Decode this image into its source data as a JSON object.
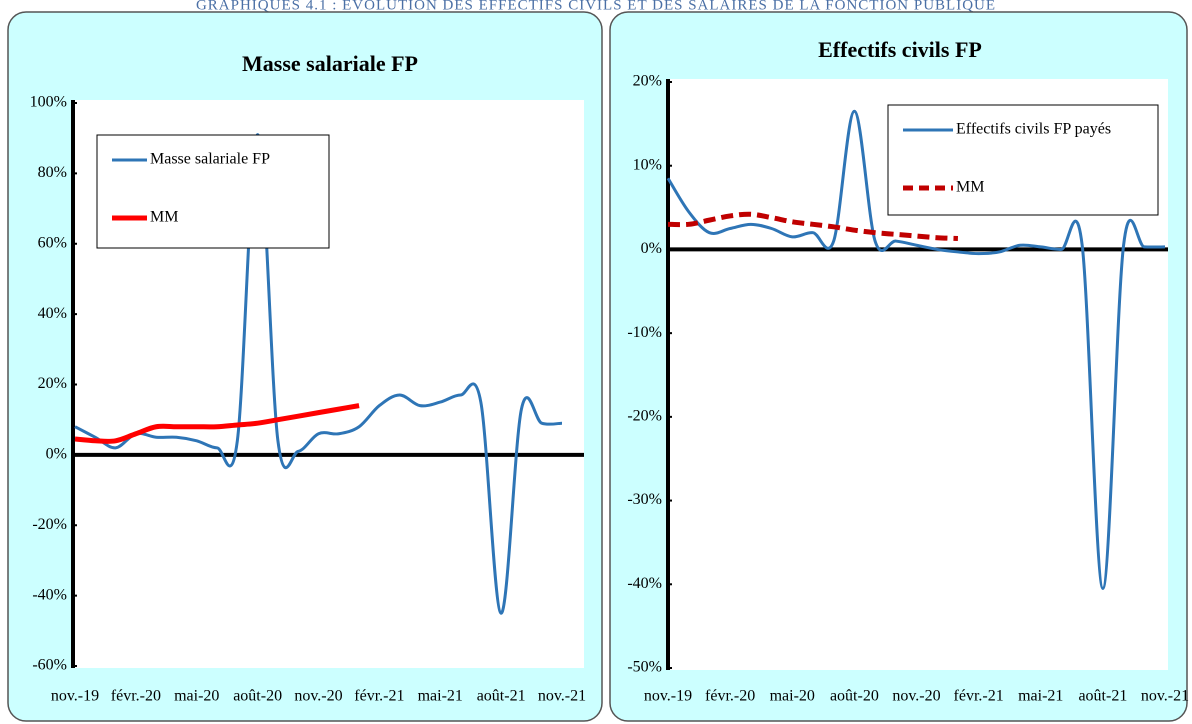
{
  "header": "GRAPHIQUES 4.1 : EVOLUTION DES EFFECTIFS CIVILS ET DES SALAIRES DE LA FONCTION PUBLIQUE",
  "chart_data": [
    {
      "type": "line",
      "title": "Masse salariale FP",
      "categories": [
        "nov.-19",
        null,
        null,
        "févr.-20",
        null,
        null,
        "mai-20",
        null,
        null,
        "août-20",
        null,
        null,
        "nov.-20",
        null,
        null,
        "févr.-21",
        null,
        null,
        "mai-21",
        null,
        null,
        "août-21",
        null,
        null,
        "nov.-21"
      ],
      "series": [
        {
          "name": "Masse salariale FP",
          "color": "#2e75b6",
          "line_style": "solid",
          "values": [
            8,
            5,
            2,
            6,
            5,
            5,
            4,
            2,
            4,
            91,
            4,
            1,
            6,
            6,
            8,
            14,
            17,
            14,
            15,
            17,
            15,
            -45,
            13,
            9,
            9
          ]
        },
        {
          "name": "MM",
          "color": "#ff0000",
          "line_style": "solid",
          "values": [
            4.5,
            4,
            4,
            6,
            8,
            8,
            8,
            8,
            8.5,
            9,
            10,
            11,
            12,
            13,
            14,
            null,
            null,
            null,
            null,
            null,
            null,
            null,
            null,
            null,
            null
          ]
        }
      ],
      "ylim": [
        -60,
        100
      ],
      "yticks": [
        {
          "value": -60,
          "label": "-60%"
        },
        {
          "value": -40,
          "label": "-40%"
        },
        {
          "value": -20,
          "label": "-20%"
        },
        {
          "value": 0,
          "label": "0%"
        },
        {
          "value": 20,
          "label": "20%"
        },
        {
          "value": 40,
          "label": "40%"
        },
        {
          "value": 60,
          "label": "60%"
        },
        {
          "value": 80,
          "label": "80%"
        },
        {
          "value": 100,
          "label": "100%"
        }
      ],
      "grid": false,
      "legend": "upper left"
    },
    {
      "type": "line",
      "title": "Effectifs civils FP",
      "categories": [
        "nov.-19",
        null,
        null,
        "févr.-20",
        null,
        null,
        "mai-20",
        null,
        null,
        "août-20",
        null,
        null,
        "nov.-20",
        null,
        null,
        "févr.-21",
        null,
        null,
        "mai-21",
        null,
        null,
        "août-21",
        null,
        null,
        "nov.-21"
      ],
      "series": [
        {
          "name": "Effectifs civils FP payés",
          "color": "#2e75b6",
          "line_style": "solid",
          "values": [
            8.5,
            4.5,
            2,
            2.5,
            3,
            2.5,
            1.5,
            2,
            1,
            16.5,
            1,
            1,
            0.5,
            0,
            -0.3,
            -0.5,
            -0.3,
            0.5,
            0.3,
            0,
            0.5,
            -40.5,
            0.5,
            0.3,
            0.3
          ]
        },
        {
          "name": "MM",
          "color": "#c00000",
          "line_style": "dashed",
          "values": [
            3,
            3,
            3.5,
            4,
            4.2,
            3.8,
            3.3,
            3,
            2.7,
            2.3,
            2,
            1.8,
            1.6,
            1.4,
            1.3,
            null,
            null,
            null,
            null,
            null,
            null,
            null,
            null,
            null,
            null
          ]
        }
      ],
      "ylim": [
        -50,
        20
      ],
      "yticks": [
        {
          "value": -50,
          "label": "-50%"
        },
        {
          "value": -40,
          "label": "-40%"
        },
        {
          "value": -30,
          "label": "-30%"
        },
        {
          "value": -20,
          "label": "-20%"
        },
        {
          "value": -10,
          "label": "-10%"
        },
        {
          "value": 0,
          "label": "0%"
        },
        {
          "value": 10,
          "label": "10%"
        },
        {
          "value": 20,
          "label": "20%"
        }
      ],
      "grid": false,
      "legend": "upper right"
    }
  ]
}
